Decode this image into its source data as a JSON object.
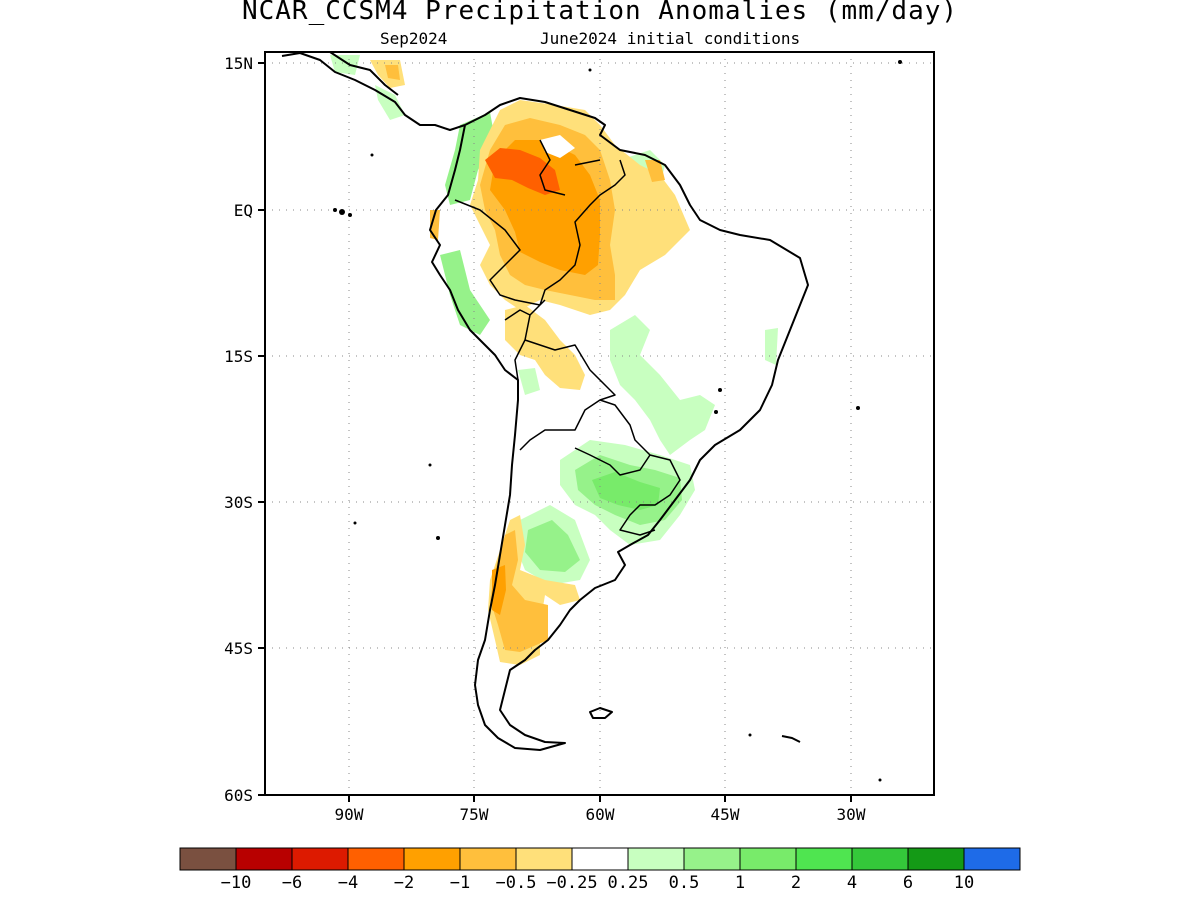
{
  "title": "NCAR_CCSM4 Precipitation Anomalies (mm/day)",
  "subtitle_left": "Sep2024",
  "subtitle_right": "June2024 initial conditions",
  "lat_labels": [
    "15N",
    "EQ",
    "15S",
    "30S",
    "45S",
    "60S"
  ],
  "lon_labels": [
    "90W",
    "75W",
    "60W",
    "45W",
    "30W"
  ],
  "colorbar": {
    "colors": [
      "#7a5040",
      "#b80000",
      "#dd1a00",
      "#ff6000",
      "#ffa000",
      "#ffbf3c",
      "#ffe07a",
      "#ffffff",
      "#c8ffc0",
      "#96f28a",
      "#78eb6a",
      "#4fe550",
      "#34c83a",
      "#149a16",
      "#1e6be8"
    ],
    "labels": [
      "−10",
      "−6",
      "−4",
      "−2",
      "−1",
      "−0.5",
      "−0.25",
      "0.25",
      "0.5",
      "1",
      "2",
      "4",
      "6",
      "10"
    ]
  }
}
